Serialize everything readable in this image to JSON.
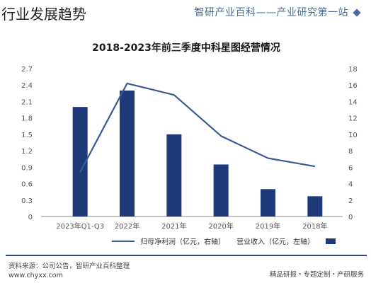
{
  "page_title": "行业发展趋势",
  "header": {
    "slogan": "智研产业百科——产业研究第一站"
  },
  "footer": {
    "source": "资料来源：公司公告，智研产业百科整理",
    "website": "www.chyxx.com",
    "tagline": "精品研报・专题定制・产研服务"
  },
  "colors": {
    "bar": "#1f3a7a",
    "line": "#3a5a96",
    "frame": "#2b4a7a"
  },
  "chart_data": {
    "type": "bar",
    "title": "2018-2023年前三季度中科星图经营情况",
    "categories": [
      "2023年Q1-Q3",
      "2022年",
      "2021年",
      "2020年",
      "2019年",
      "2018年"
    ],
    "y_left": {
      "ticks": [
        "0",
        "0.3",
        "0.6",
        "0.9",
        "1.2",
        "1.5",
        "1.8",
        "2.1",
        "2.4",
        "2.7"
      ],
      "range": [
        0,
        2.7
      ]
    },
    "y_right": {
      "ticks": [
        "0",
        "2",
        "4",
        "6",
        "8",
        "10",
        "12",
        "14",
        "16",
        "18"
      ],
      "range": [
        0,
        18
      ]
    },
    "series": [
      {
        "name": "营业收入（亿元，左轴）",
        "type": "bar",
        "axis": "left",
        "values": [
          2.0,
          2.3,
          1.5,
          0.95,
          0.5,
          0.37
        ]
      },
      {
        "name": "归母净利润（亿元，右轴）",
        "type": "line",
        "axis": "right",
        "values": [
          5.4,
          16.2,
          14.8,
          9.8,
          7.1,
          6.1
        ]
      }
    ],
    "grid": false,
    "legend_position": "bottom"
  }
}
